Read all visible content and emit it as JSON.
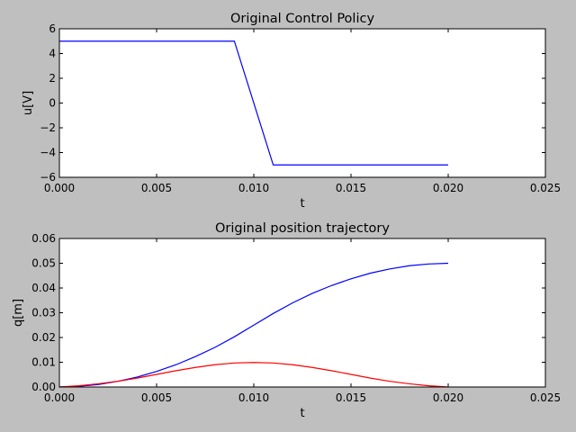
{
  "figure": {
    "background": "#bfbfbf",
    "axes_background": "#ffffff"
  },
  "chart_data": [
    {
      "type": "line",
      "title": "Original Control Policy",
      "xlabel": "t",
      "ylabel": "u[V]",
      "xlim": [
        0.0,
        0.025
      ],
      "ylim": [
        -6,
        6
      ],
      "xticks": [
        "0.000",
        "0.005",
        "0.010",
        "0.015",
        "0.020",
        "0.025"
      ],
      "xtick_values": [
        0.0,
        0.005,
        0.01,
        0.015,
        0.02,
        0.025
      ],
      "yticks": [
        "6",
        "4",
        "2",
        "0",
        "−2",
        "−4",
        "−6"
      ],
      "ytick_values": [
        6,
        4,
        2,
        0,
        -2,
        -4,
        -6
      ],
      "grid": false,
      "series": [
        {
          "color": "#0000ff",
          "x": [
            0.0,
            0.009,
            0.011,
            0.02
          ],
          "y": [
            5,
            5,
            -5,
            -5
          ]
        }
      ]
    },
    {
      "type": "line",
      "title": "Original position trajectory",
      "xlabel": "t",
      "ylabel": "q[m]",
      "xlim": [
        0.0,
        0.025
      ],
      "ylim": [
        0.0,
        0.06
      ],
      "xticks": [
        "0.000",
        "0.005",
        "0.010",
        "0.015",
        "0.020",
        "0.025"
      ],
      "xtick_values": [
        0.0,
        0.005,
        0.01,
        0.015,
        0.02,
        0.025
      ],
      "yticks": [
        "0.06",
        "0.05",
        "0.04",
        "0.03",
        "0.02",
        "0.01",
        "0.00"
      ],
      "ytick_values": [
        0.06,
        0.05,
        0.04,
        0.03,
        0.02,
        0.01,
        0.0
      ],
      "grid": false,
      "series": [
        {
          "color": "#0000ff",
          "x": [
            0.0,
            0.001,
            0.002,
            0.003,
            0.004,
            0.005,
            0.006,
            0.007,
            0.008,
            0.009,
            0.01,
            0.011,
            0.012,
            0.013,
            0.014,
            0.015,
            0.016,
            0.017,
            0.018,
            0.019,
            0.02
          ],
          "y": [
            0.0,
            0.0003,
            0.001,
            0.0023,
            0.004,
            0.0063,
            0.009,
            0.0123,
            0.016,
            0.0203,
            0.025,
            0.0297,
            0.034,
            0.0378,
            0.041,
            0.0437,
            0.046,
            0.0477,
            0.049,
            0.0497,
            0.05
          ]
        },
        {
          "color": "#ff0000",
          "x": [
            0.0,
            0.001,
            0.002,
            0.003,
            0.004,
            0.005,
            0.006,
            0.007,
            0.008,
            0.009,
            0.01,
            0.011,
            0.012,
            0.013,
            0.014,
            0.015,
            0.016,
            0.017,
            0.018,
            0.019,
            0.02
          ],
          "y": [
            0.0,
            0.0005,
            0.0013,
            0.0023,
            0.0036,
            0.0051,
            0.0066,
            0.0079,
            0.009,
            0.0097,
            0.0099,
            0.0097,
            0.009,
            0.0079,
            0.0066,
            0.0051,
            0.0036,
            0.0023,
            0.0013,
            0.0005,
            0.0
          ]
        }
      ]
    }
  ]
}
